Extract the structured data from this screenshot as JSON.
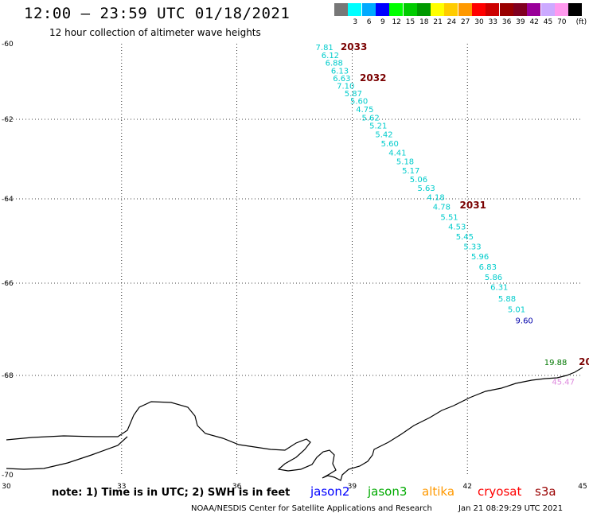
{
  "header": {
    "title": "12:00 – 23:59 UTC 01/18/2021",
    "subtitle": "12 hour collection of altimeter wave heights"
  },
  "scale": {
    "unit": "(ft)",
    "bins": [
      {
        "label": "",
        "color": "#777777"
      },
      {
        "label": "3",
        "color": "#00ffff"
      },
      {
        "label": "6",
        "color": "#00aaff"
      },
      {
        "label": "9",
        "color": "#0000ff"
      },
      {
        "label": "12",
        "color": "#00ff00"
      },
      {
        "label": "15",
        "color": "#00cc00"
      },
      {
        "label": "18",
        "color": "#009900"
      },
      {
        "label": "21",
        "color": "#ffff00"
      },
      {
        "label": "24",
        "color": "#ffcc00"
      },
      {
        "label": "27",
        "color": "#ff9900"
      },
      {
        "label": "30",
        "color": "#ff0000"
      },
      {
        "label": "33",
        "color": "#cc0000"
      },
      {
        "label": "36",
        "color": "#990000"
      },
      {
        "label": "39",
        "color": "#800020"
      },
      {
        "label": "42",
        "color": "#990099"
      },
      {
        "label": "45",
        "color": "#ccaaff"
      },
      {
        "label": "70",
        "color": "#ff99ee"
      },
      {
        "label": "",
        "color": "#000000"
      }
    ]
  },
  "map_axes": {
    "lon_range": [
      30,
      45
    ],
    "lat_range": [
      -70,
      -60
    ],
    "lon_ticks": [
      "30",
      "33",
      "36",
      "39",
      "42",
      "45"
    ],
    "lat_ticks": [
      "-60",
      "-62",
      "-64",
      "-66",
      "-68",
      "-70"
    ]
  },
  "observations": [
    {
      "value": "7.81",
      "lon": 38.05,
      "lat": -60.08,
      "color": "#00cccc"
    },
    {
      "value": "6.12",
      "lon": 38.2,
      "lat": -60.29,
      "color": "#00cccc"
    },
    {
      "value": "6.88",
      "lon": 38.3,
      "lat": -60.49,
      "color": "#00cccc"
    },
    {
      "value": "6.13",
      "lon": 38.45,
      "lat": -60.7,
      "color": "#00cccc"
    },
    {
      "value": "6.63",
      "lon": 38.5,
      "lat": -60.9,
      "color": "#00cccc"
    },
    {
      "value": "7.10",
      "lon": 38.6,
      "lat": -61.1,
      "color": "#00cccc"
    },
    {
      "value": "5.87",
      "lon": 38.8,
      "lat": -61.3,
      "color": "#00cccc"
    },
    {
      "value": "5.60",
      "lon": 38.95,
      "lat": -61.51,
      "color": "#00cccc"
    },
    {
      "value": "4.75",
      "lon": 39.1,
      "lat": -61.73,
      "color": "#00cccc"
    },
    {
      "value": "5.62",
      "lon": 39.25,
      "lat": -61.95,
      "color": "#00cccc"
    },
    {
      "value": "5.21",
      "lon": 39.45,
      "lat": -62.15,
      "color": "#00cccc"
    },
    {
      "value": "5.42",
      "lon": 39.6,
      "lat": -62.37,
      "color": "#00cccc"
    },
    {
      "value": "5.60",
      "lon": 39.75,
      "lat": -62.6,
      "color": "#00cccc"
    },
    {
      "value": "4.41",
      "lon": 39.95,
      "lat": -62.83,
      "color": "#00cccc"
    },
    {
      "value": "5.18",
      "lon": 40.15,
      "lat": -63.05,
      "color": "#00cccc"
    },
    {
      "value": "5.17",
      "lon": 40.3,
      "lat": -63.28,
      "color": "#00cccc"
    },
    {
      "value": "5.06",
      "lon": 40.5,
      "lat": -63.5,
      "color": "#00cccc"
    },
    {
      "value": "5.63",
      "lon": 40.7,
      "lat": -63.72,
      "color": "#00cccc"
    },
    {
      "value": "4.18",
      "lon": 40.95,
      "lat": -63.95,
      "color": "#00cccc"
    },
    {
      "value": "4.78",
      "lon": 41.1,
      "lat": -64.18,
      "color": "#00cccc"
    },
    {
      "value": "5.51",
      "lon": 41.3,
      "lat": -64.42,
      "color": "#00cccc"
    },
    {
      "value": "4.53",
      "lon": 41.5,
      "lat": -64.65,
      "color": "#00cccc"
    },
    {
      "value": "5.45",
      "lon": 41.7,
      "lat": -64.89,
      "color": "#00cccc"
    },
    {
      "value": "5.33",
      "lon": 41.9,
      "lat": -65.12,
      "color": "#00cccc"
    },
    {
      "value": "5.96",
      "lon": 42.1,
      "lat": -65.36,
      "color": "#00cccc"
    },
    {
      "value": "6.83",
      "lon": 42.3,
      "lat": -65.6,
      "color": "#00cccc"
    },
    {
      "value": "5.86",
      "lon": 42.45,
      "lat": -65.85,
      "color": "#00cccc"
    },
    {
      "value": "6.31",
      "lon": 42.6,
      "lat": -66.08,
      "color": "#00cccc"
    },
    {
      "value": "5.88",
      "lon": 42.8,
      "lat": -66.33,
      "color": "#00cccc"
    },
    {
      "value": "5.01",
      "lon": 43.05,
      "lat": -66.56,
      "color": "#00cccc"
    },
    {
      "value": "9.60",
      "lon": 43.25,
      "lat": -66.8,
      "color": "#0000aa"
    },
    {
      "value": "19.88",
      "lon": 44.0,
      "lat": -67.71,
      "color": "#007700"
    },
    {
      "value": "45.47",
      "lon": 44.2,
      "lat": -68.12,
      "color": "#dd88dd"
    }
  ],
  "cycles": [
    {
      "label": "2033",
      "lon": 38.7,
      "lat": -60.08
    },
    {
      "label": "2032",
      "lon": 39.2,
      "lat": -60.9
    },
    {
      "label": "2031",
      "lon": 41.8,
      "lat": -64.15
    },
    {
      "label": "20",
      "lon": 44.9,
      "lat": -67.71
    }
  ],
  "note": "note: 1) Time is in UTC; 2) SWH is in feet",
  "missions": [
    {
      "name": "jason2",
      "color": "#0000ff"
    },
    {
      "name": "jason3",
      "color": "#00aa00"
    },
    {
      "name": "altika",
      "color": "#ff9900"
    },
    {
      "name": "cryosat",
      "color": "#ff0000"
    },
    {
      "name": "s3a",
      "color": "#990000"
    }
  ],
  "footer": {
    "credit": "NOAA/NESDIS Center for Satellite Applications and Research",
    "timestamp": "Jan 21 08:29:29 UTC 2021"
  }
}
